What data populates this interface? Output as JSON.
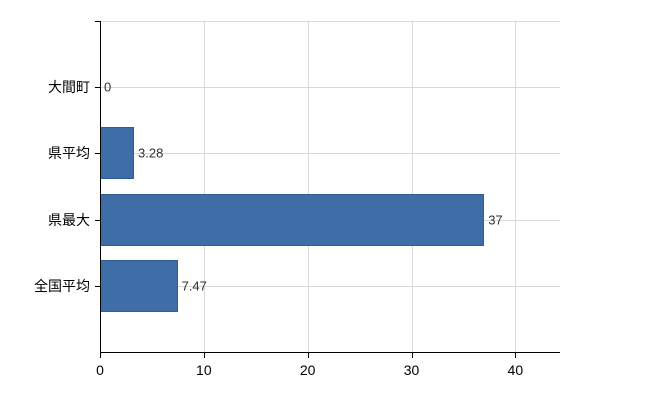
{
  "chart_data": {
    "type": "bar",
    "orientation": "horizontal",
    "title": "",
    "xlabel": "",
    "ylabel": "",
    "legend": "none",
    "grid": true,
    "categories": [
      "大間町",
      "県平均",
      "県最大",
      "全国平均"
    ],
    "values": [
      0,
      3.28,
      37,
      7.47
    ],
    "value_labels": [
      "0",
      "3.28",
      "37",
      "7.47"
    ],
    "x_ticks": [
      0,
      10,
      20,
      30,
      40
    ],
    "x_tick_labels": [
      "0",
      "10",
      "20",
      "30",
      "40"
    ],
    "xlim": [
      0,
      44.3
    ],
    "colors": {
      "bar": "#3e6da8",
      "bar_border": "#2f5c93",
      "grid": "#d9d9d9",
      "axis": "#000000",
      "category_text": "#000000",
      "value_text": "#303030",
      "tick_text": "#000000",
      "background": "#ffffff"
    }
  }
}
